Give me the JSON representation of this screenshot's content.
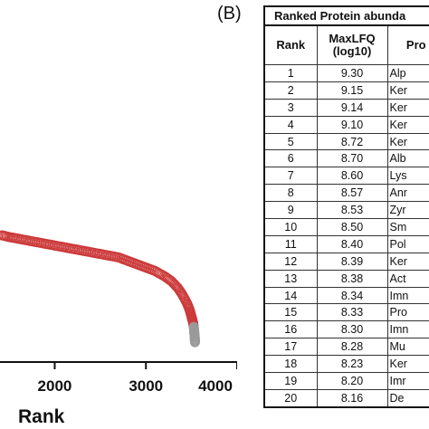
{
  "panel_label": "(B)",
  "chart_data": {
    "type": "scatter",
    "xlabel": "Rank",
    "xlim": [
      1400,
      4000
    ],
    "ylim": [
      7.6,
      9.6
    ],
    "xticks": [
      "2000",
      "3000",
      "4000"
    ],
    "xtick_values": [
      2000,
      3000,
      4000
    ],
    "marker": "open-circle",
    "marker_color": "#cc3a3a",
    "tail_marker_color": "#9a9a9a",
    "points": [
      {
        "x": 1420,
        "y": 8.32
      },
      {
        "x": 1500,
        "y": 8.31
      },
      {
        "x": 1600,
        "y": 8.3
      },
      {
        "x": 1700,
        "y": 8.29
      },
      {
        "x": 1800,
        "y": 8.28
      },
      {
        "x": 1900,
        "y": 8.27
      },
      {
        "x": 2000,
        "y": 8.26
      },
      {
        "x": 2100,
        "y": 8.25
      },
      {
        "x": 2200,
        "y": 8.24
      },
      {
        "x": 2300,
        "y": 8.23
      },
      {
        "x": 2400,
        "y": 8.22
      },
      {
        "x": 2500,
        "y": 8.21
      },
      {
        "x": 2600,
        "y": 8.2
      },
      {
        "x": 2700,
        "y": 8.19
      },
      {
        "x": 2800,
        "y": 8.17
      },
      {
        "x": 2900,
        "y": 8.15
      },
      {
        "x": 3000,
        "y": 8.13
      },
      {
        "x": 3100,
        "y": 8.11
      },
      {
        "x": 3200,
        "y": 8.08
      },
      {
        "x": 3280,
        "y": 8.05
      },
      {
        "x": 3350,
        "y": 8.01
      },
      {
        "x": 3400,
        "y": 7.97
      },
      {
        "x": 3450,
        "y": 7.92
      },
      {
        "x": 3480,
        "y": 7.88
      },
      {
        "x": 3500,
        "y": 7.84
      },
      {
        "x": 3515,
        "y": 7.81
      },
      {
        "x": 3525,
        "y": 7.78,
        "tail": true
      },
      {
        "x": 3530,
        "y": 7.75,
        "tail": true
      },
      {
        "x": 3535,
        "y": 7.72,
        "tail": true
      },
      {
        "x": 3538,
        "y": 7.69,
        "tail": true
      }
    ]
  },
  "table": {
    "title": "Ranked Protein abunda",
    "headers": [
      "Rank",
      "MaxLFQ (log10)",
      "Pro"
    ],
    "rows": [
      [
        "1",
        "9.30",
        "Alp"
      ],
      [
        "2",
        "9.15",
        "Ker"
      ],
      [
        "3",
        "9.14",
        "Ker"
      ],
      [
        "4",
        "9.10",
        "Ker"
      ],
      [
        "5",
        "8.72",
        "Ker"
      ],
      [
        "6",
        "8.70",
        "Alb"
      ],
      [
        "7",
        "8.60",
        "Lys"
      ],
      [
        "8",
        "8.57",
        "Anr"
      ],
      [
        "9",
        "8.53",
        "Zyr"
      ],
      [
        "10",
        "8.50",
        "Sm"
      ],
      [
        "11",
        "8.40",
        "Pol"
      ],
      [
        "12",
        "8.39",
        "Ker"
      ],
      [
        "13",
        "8.38",
        "Act"
      ],
      [
        "14",
        "8.34",
        "Imn"
      ],
      [
        "15",
        "8.33",
        "Pro"
      ],
      [
        "16",
        "8.30",
        "Imn"
      ],
      [
        "17",
        "8.28",
        "Mu"
      ],
      [
        "18",
        "8.23",
        "Ker"
      ],
      [
        "19",
        "8.20",
        "Imr"
      ],
      [
        "20",
        "8.16",
        "De"
      ]
    ]
  }
}
